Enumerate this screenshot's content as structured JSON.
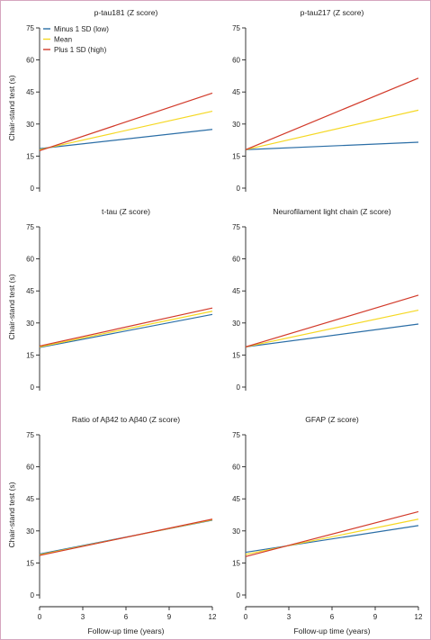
{
  "colors": {
    "minus": "#2b6ea6",
    "mean": "#f5d824",
    "plus": "#d23a2a"
  },
  "chart_data": [
    {
      "type": "line",
      "title": "p-tau181 (Z score)",
      "ylabel": "Chair-stand test (s)",
      "xlabel": "",
      "x": [
        0,
        12
      ],
      "xticks": [],
      "yticks": [
        0,
        15,
        30,
        45,
        60,
        75
      ],
      "xlim": [
        0,
        12
      ],
      "ylim": [
        0,
        75
      ],
      "legend": {
        "placement": "top-left",
        "entries": [
          "Minus 1 SD (low)",
          "Mean",
          "Plus 1 SD (high)"
        ]
      },
      "series": [
        {
          "name": "Minus 1 SD (low)",
          "color_key": "minus",
          "values": [
            18.5,
            27.5
          ]
        },
        {
          "name": "Mean",
          "color_key": "mean",
          "values": [
            18.0,
            36.0
          ]
        },
        {
          "name": "Plus 1 SD (high)",
          "color_key": "plus",
          "values": [
            17.5,
            44.5
          ]
        }
      ]
    },
    {
      "type": "line",
      "title": "p-tau217 (Z score)",
      "ylabel": "",
      "xlabel": "",
      "x": [
        0,
        12
      ],
      "xticks": [],
      "yticks": [
        0,
        15,
        30,
        45,
        60,
        75
      ],
      "xlim": [
        0,
        12
      ],
      "ylim": [
        0,
        75
      ],
      "series": [
        {
          "name": "Minus 1 SD (low)",
          "color_key": "minus",
          "values": [
            18.0,
            21.5
          ]
        },
        {
          "name": "Mean",
          "color_key": "mean",
          "values": [
            18.0,
            36.5
          ]
        },
        {
          "name": "Plus 1 SD (high)",
          "color_key": "plus",
          "values": [
            18.0,
            51.5
          ]
        }
      ]
    },
    {
      "type": "line",
      "title": "t-tau (Z score)",
      "ylabel": "Chair-stand test (s)",
      "xlabel": "",
      "x": [
        0,
        12
      ],
      "xticks": [],
      "yticks": [
        0,
        15,
        30,
        45,
        60,
        75
      ],
      "xlim": [
        0,
        12
      ],
      "ylim": [
        0,
        75
      ],
      "series": [
        {
          "name": "Minus 1 SD (low)",
          "color_key": "minus",
          "values": [
            18.5,
            34.0
          ]
        },
        {
          "name": "Mean",
          "color_key": "mean",
          "values": [
            18.8,
            35.5
          ]
        },
        {
          "name": "Plus 1 SD (high)",
          "color_key": "plus",
          "values": [
            19.2,
            37.0
          ]
        }
      ]
    },
    {
      "type": "line",
      "title": "Neurofilament light chain (Z score)",
      "ylabel": "",
      "xlabel": "",
      "x": [
        0,
        12
      ],
      "xticks": [],
      "yticks": [
        0,
        15,
        30,
        45,
        60,
        75
      ],
      "xlim": [
        0,
        12
      ],
      "ylim": [
        0,
        75
      ],
      "series": [
        {
          "name": "Minus 1 SD (low)",
          "color_key": "minus",
          "values": [
            18.8,
            29.5
          ]
        },
        {
          "name": "Mean",
          "color_key": "mean",
          "values": [
            18.8,
            36.0
          ]
        },
        {
          "name": "Plus 1 SD (high)",
          "color_key": "plus",
          "values": [
            18.8,
            43.0
          ]
        }
      ]
    },
    {
      "type": "line",
      "title": "Ratio of Aβ42 to Aβ40 (Z score)",
      "ylabel": "Chair-stand test (s)",
      "xlabel": "Follow-up time (years)",
      "x": [
        0,
        12
      ],
      "xticks": [
        0,
        3,
        6,
        9,
        12
      ],
      "yticks": [
        0,
        15,
        30,
        45,
        60,
        75
      ],
      "xlim": [
        0,
        12
      ],
      "ylim": [
        0,
        75
      ],
      "series": [
        {
          "name": "Minus 1 SD (low)",
          "color_key": "minus",
          "values": [
            19.2,
            35.0
          ]
        },
        {
          "name": "Mean",
          "color_key": "mean",
          "values": [
            18.8,
            35.2
          ]
        },
        {
          "name": "Plus 1 SD (high)",
          "color_key": "plus",
          "values": [
            18.5,
            35.5
          ]
        }
      ]
    },
    {
      "type": "line",
      "title": "GFAP (Z score)",
      "ylabel": "",
      "xlabel": "Follow-up time (years)",
      "x": [
        0,
        12
      ],
      "xticks": [
        0,
        3,
        6,
        9,
        12
      ],
      "yticks": [
        0,
        15,
        30,
        45,
        60,
        75
      ],
      "xlim": [
        0,
        12
      ],
      "ylim": [
        0,
        75
      ],
      "series": [
        {
          "name": "Minus 1 SD (low)",
          "color_key": "minus",
          "values": [
            20.0,
            32.5
          ]
        },
        {
          "name": "Mean",
          "color_key": "mean",
          "values": [
            19.0,
            35.5
          ]
        },
        {
          "name": "Plus 1 SD (high)",
          "color_key": "plus",
          "values": [
            18.0,
            39.0
          ]
        }
      ]
    }
  ]
}
